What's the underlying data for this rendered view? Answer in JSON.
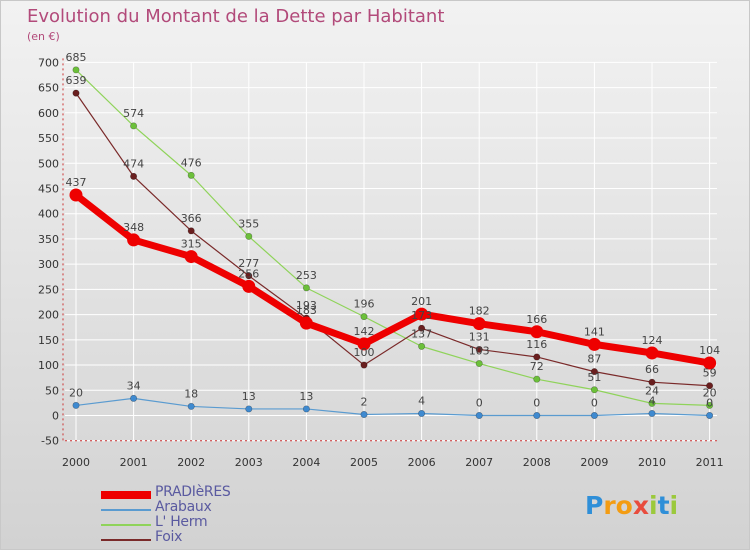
{
  "title": "Evolution du Montant de la Dette par Habitant",
  "unit": "(en €)",
  "logo": {
    "letters": [
      "P",
      "r",
      "o",
      "x",
      "i",
      "t",
      "i"
    ],
    "colors": [
      "#2f8fd8",
      "#f39c12",
      "#f39c12",
      "#e84c3d",
      "#9bc93c",
      "#2f8fd8",
      "#9bc93c"
    ]
  },
  "chart_data": {
    "type": "line",
    "x": [
      2000,
      2001,
      2002,
      2003,
      2004,
      2005,
      2006,
      2007,
      2008,
      2009,
      2010,
      2011
    ],
    "xlabels": [
      "2000",
      "2001",
      "2002",
      "2003",
      "2004",
      "2005",
      "2006",
      "2007",
      "2008",
      "2009",
      "2010",
      "2011"
    ],
    "ylim": [
      -50,
      700
    ],
    "yticks": [
      -50,
      0,
      50,
      100,
      150,
      200,
      250,
      300,
      350,
      400,
      450,
      500,
      550,
      600,
      650,
      700
    ],
    "series": [
      {
        "name": "Arabaux",
        "color": "#5a9bd0",
        "marker": "#3f8ad0",
        "values": [
          20,
          34,
          18,
          13,
          13,
          2,
          4,
          0,
          0,
          0,
          4,
          0
        ],
        "labels": [
          "20",
          "34",
          "18",
          "13",
          "13",
          "2",
          "4",
          "0",
          "0",
          "0",
          "4",
          "0"
        ]
      },
      {
        "name": "L' Herm",
        "color": "#8fd35a",
        "marker": "#6cc03a",
        "values": [
          685,
          574,
          476,
          355,
          253,
          196,
          137,
          103,
          72,
          51,
          24,
          20
        ],
        "labels": [
          "685",
          "574",
          "476",
          "355",
          "253",
          "196",
          "137",
          "103",
          "72",
          "51",
          "24",
          "20"
        ]
      },
      {
        "name": "Foix",
        "color": "#7a2a2a",
        "marker": "#6a1f1f",
        "values": [
          639,
          474,
          366,
          277,
          193,
          100,
          173,
          131,
          116,
          87,
          66,
          59
        ],
        "labels": [
          "639",
          "474",
          "366",
          "277",
          "193",
          "100",
          "173",
          "131",
          "116",
          "87",
          "66",
          "59"
        ]
      },
      {
        "name": "PRADIèRES",
        "color": "#ee0000",
        "marker": "#ee0000",
        "values": [
          437,
          348,
          315,
          256,
          183,
          142,
          201,
          182,
          166,
          141,
          124,
          104
        ],
        "labels": [
          "437",
          "348",
          "315",
          "256",
          "183",
          "142",
          "201",
          "182",
          "166",
          "141",
          "124",
          "104"
        ]
      }
    ],
    "legend": [
      "PRADIèRES",
      "Arabaux",
      "L' Herm",
      "Foix"
    ]
  }
}
